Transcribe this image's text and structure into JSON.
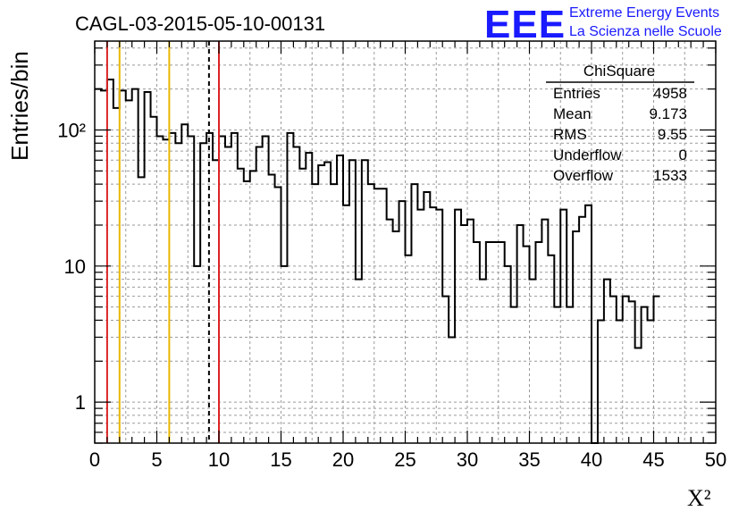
{
  "title": "CAGL-03-2015-05-10-00131",
  "logo": {
    "text": "EEE",
    "line1": "Extreme Energy Events",
    "line2": "La Scienza nelle Scuole",
    "color": "#1a1aff"
  },
  "stats": {
    "name": "ChiSquare",
    "rows": [
      {
        "label": "Entries",
        "value": "4958"
      },
      {
        "label": "Mean",
        "value": "9.173"
      },
      {
        "label": "RMS",
        "value": "9.55"
      },
      {
        "label": "Underflow",
        "value": "0"
      },
      {
        "label": "Overflow",
        "value": "1533"
      }
    ]
  },
  "chart_data": {
    "type": "histogram",
    "ylabel": "Entries/bin",
    "xlabel": "X²",
    "xlim": [
      0,
      50
    ],
    "ylim": [
      0.5,
      450
    ],
    "log_y": true,
    "grid": true,
    "bin_width": 0.5,
    "bin_edges_start": 0,
    "x_ticks": [
      "0",
      "5",
      "10",
      "15",
      "20",
      "25",
      "30",
      "35",
      "40",
      "45",
      "50"
    ],
    "y_ticks": [
      {
        "value": 1,
        "label": "1"
      },
      {
        "value": 10,
        "label": "10"
      },
      {
        "value": 100,
        "label": "10²"
      }
    ],
    "values": [
      200,
      195,
      235,
      145,
      195,
      165,
      200,
      45,
      190,
      125,
      90,
      85,
      95,
      80,
      110,
      90,
      10,
      80,
      95,
      60,
      90,
      75,
      95,
      52,
      42,
      50,
      75,
      90,
      47,
      38,
      10,
      95,
      75,
      52,
      68,
      40,
      55,
      58,
      40,
      65,
      28,
      60,
      8,
      60,
      40,
      37,
      37,
      22,
      18,
      30,
      12,
      40,
      26,
      35,
      27,
      26,
      6,
      3,
      26,
      20,
      22,
      15,
      8,
      15,
      15,
      15,
      10,
      5,
      20,
      14,
      8,
      15,
      22,
      12,
      5,
      26,
      5,
      18,
      23,
      28,
      0,
      4,
      8,
      6,
      4,
      6,
      5.5,
      2.5,
      5,
      4,
      6
    ],
    "vertical_lines": [
      {
        "x": 1,
        "color": "#dd2222",
        "style": "solid"
      },
      {
        "x": 2,
        "color": "#e8b800",
        "style": "solid"
      },
      {
        "x": 6,
        "color": "#e8b800",
        "style": "solid"
      },
      {
        "x": 9.2,
        "color": "#000000",
        "style": "dashed"
      },
      {
        "x": 10,
        "color": "#dd2222",
        "style": "solid"
      }
    ]
  }
}
